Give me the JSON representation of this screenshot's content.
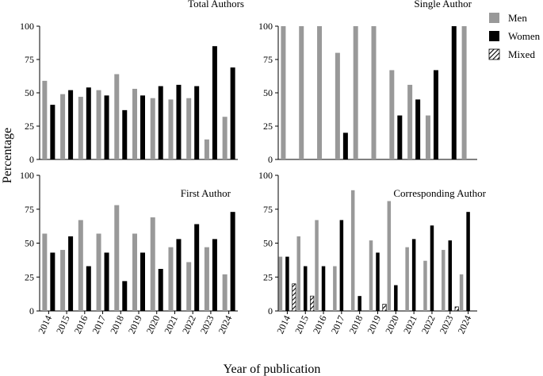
{
  "figure": {
    "ylabel": "Percentage",
    "xlabel": "Year of publication"
  },
  "legend": {
    "items": [
      {
        "label": "Men",
        "color": "#999999",
        "pattern": "solid"
      },
      {
        "label": "Women",
        "color": "#000000",
        "pattern": "solid"
      },
      {
        "label": "Mixed",
        "color": "#ffffff",
        "pattern": "hatch"
      }
    ]
  },
  "chart_data": [
    {
      "type": "bar",
      "title": "Total Authors",
      "categories": [
        "2014",
        "2015",
        "2016",
        "2017",
        "2018",
        "2019",
        "2020",
        "2021",
        "2022",
        "2023",
        "2024"
      ],
      "ylim": [
        0,
        100
      ],
      "yticks": [
        0,
        25,
        50,
        75,
        100
      ],
      "series": [
        {
          "name": "Men",
          "values": [
            59,
            49,
            47,
            52,
            64,
            53,
            46,
            45,
            46,
            15,
            32
          ]
        },
        {
          "name": "Women",
          "values": [
            41,
            52,
            54,
            48,
            37,
            48,
            55,
            56,
            55,
            85,
            69
          ]
        }
      ]
    },
    {
      "type": "bar",
      "title": "Single Author",
      "categories": [
        "2014",
        "2015",
        "2016",
        "2017",
        "2018",
        "2019",
        "2020",
        "2021",
        "2022",
        "2023",
        "2024"
      ],
      "ylim": [
        0,
        100
      ],
      "yticks": [
        0,
        25,
        50,
        75,
        100
      ],
      "series": [
        {
          "name": "Men",
          "values": [
            100,
            100,
            100,
            80,
            100,
            100,
            67,
            56,
            33,
            0,
            100
          ]
        },
        {
          "name": "Women",
          "values": [
            0,
            0,
            0,
            20,
            0,
            0,
            33,
            45,
            67,
            100,
            0
          ]
        }
      ]
    },
    {
      "type": "bar",
      "title": "First Author",
      "categories": [
        "2014",
        "2015",
        "2016",
        "2017",
        "2018",
        "2019",
        "2020",
        "2021",
        "2022",
        "2023",
        "2024"
      ],
      "ylim": [
        0,
        100
      ],
      "yticks": [
        0,
        25,
        50,
        75,
        100
      ],
      "series": [
        {
          "name": "Men",
          "values": [
            57,
            45,
            67,
            57,
            78,
            57,
            69,
            47,
            36,
            47,
            27
          ]
        },
        {
          "name": "Women",
          "values": [
            43,
            55,
            33,
            43,
            22,
            43,
            31,
            53,
            64,
            53,
            73
          ]
        }
      ]
    },
    {
      "type": "bar",
      "title": "Corresponding Author",
      "categories": [
        "2014",
        "2015",
        "2016",
        "2017",
        "2018",
        "2019",
        "2020",
        "2021",
        "2022",
        "2023",
        "2024"
      ],
      "ylim": [
        0,
        100
      ],
      "yticks": [
        0,
        25,
        50,
        75,
        100
      ],
      "series": [
        {
          "name": "Men",
          "values": [
            40,
            55,
            67,
            33,
            89,
            52,
            81,
            47,
            37,
            45,
            27
          ]
        },
        {
          "name": "Women",
          "values": [
            40,
            33,
            33,
            67,
            11,
            43,
            19,
            53,
            63,
            52,
            73
          ]
        },
        {
          "name": "Mixed",
          "values": [
            20,
            11,
            0,
            0,
            0,
            5,
            0,
            0,
            0,
            3,
            0
          ]
        }
      ]
    }
  ]
}
